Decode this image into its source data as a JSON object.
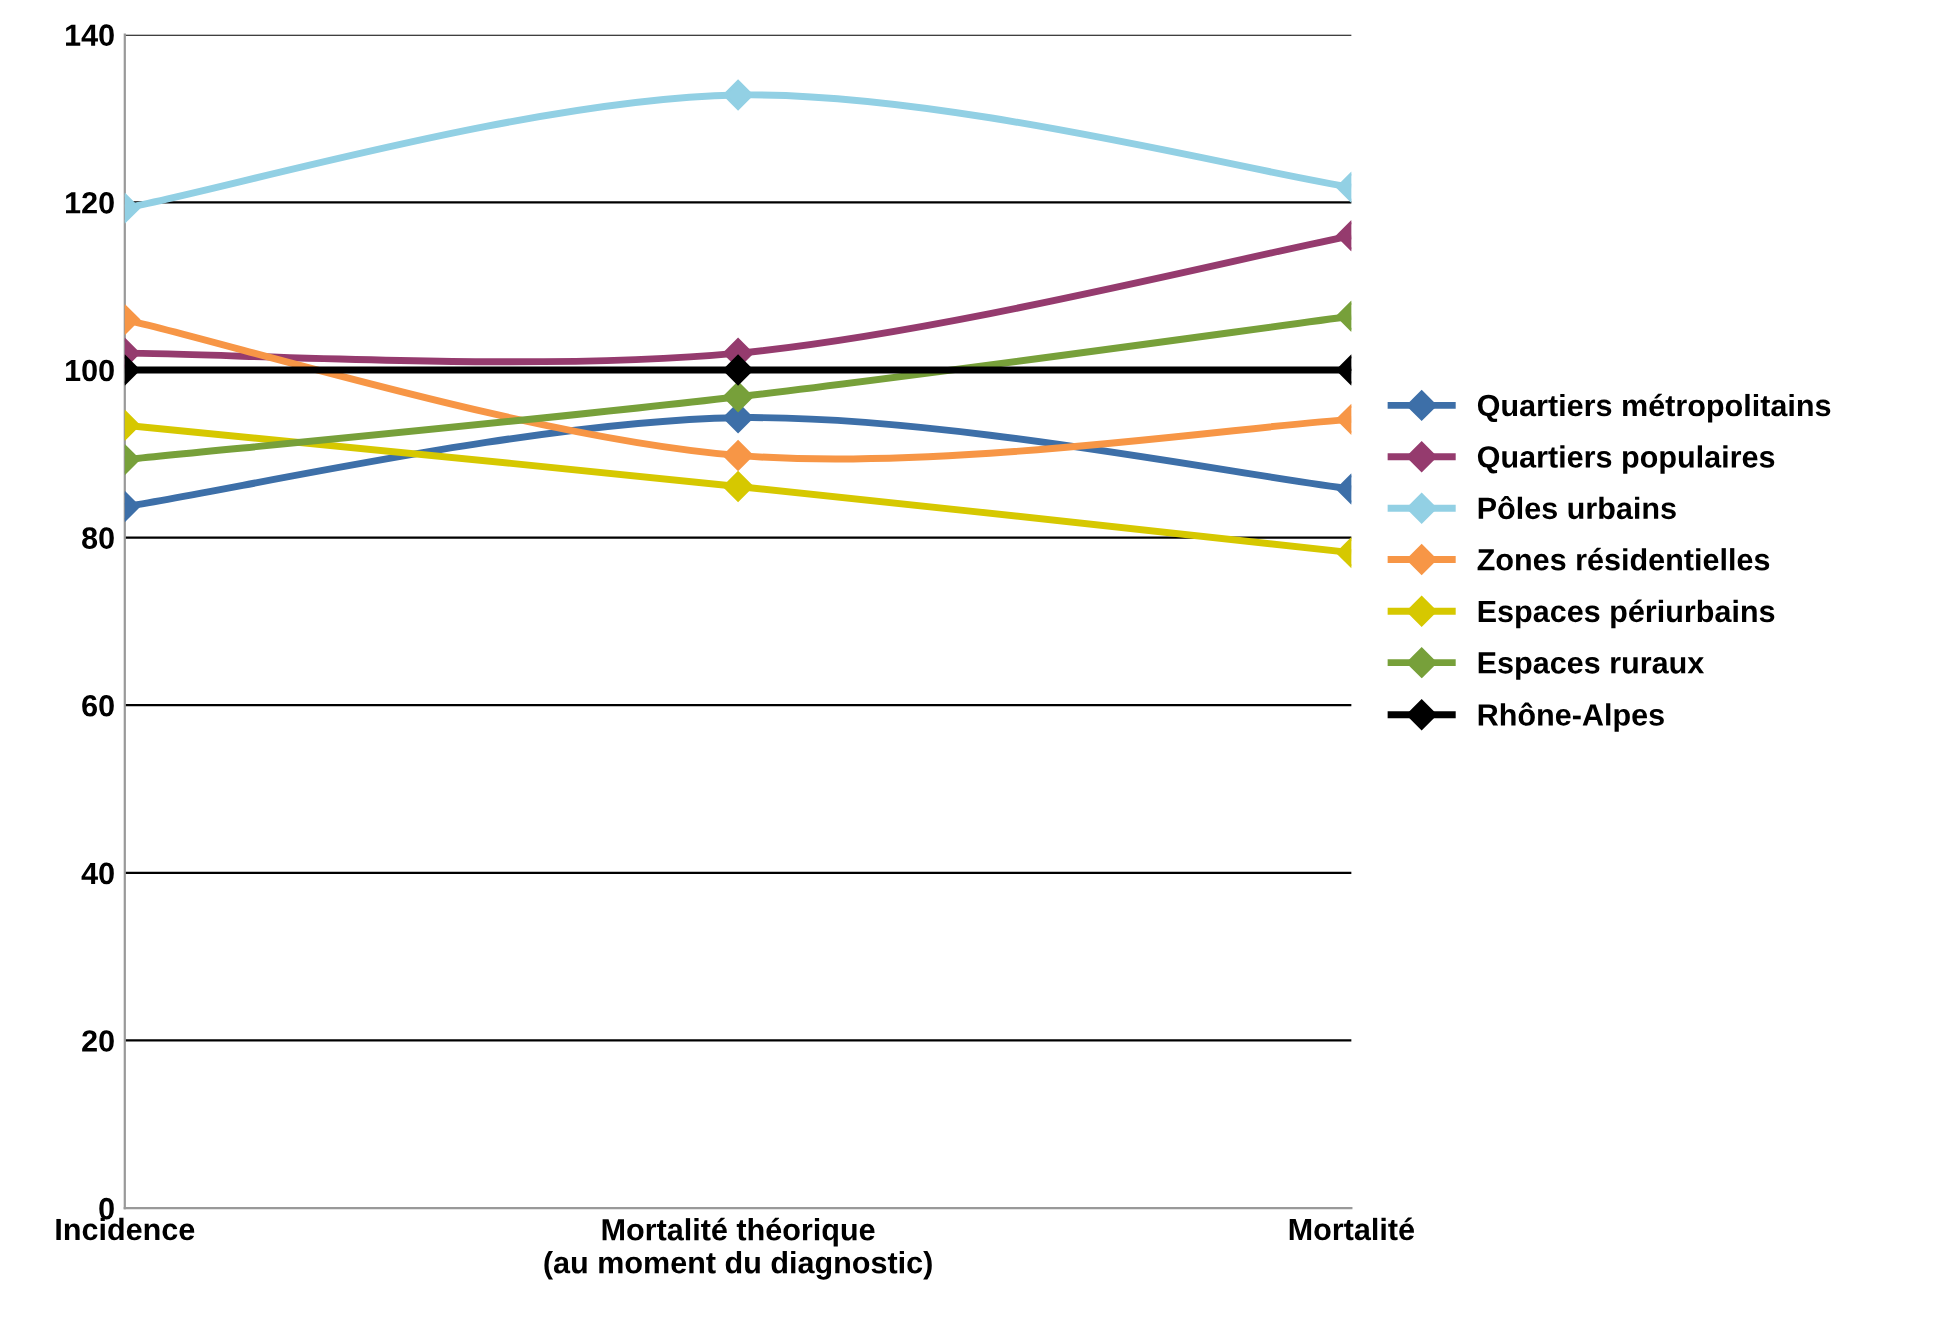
{
  "chart_data": {
    "type": "line",
    "categories": [
      "Incidence",
      "Mortalité théorique\n(au moment du diagnostic)",
      "Mortalité"
    ],
    "series": [
      {
        "name": "Quartiers métropolitains",
        "color": "#3d6fa8",
        "values": [
          83.7,
          94.3,
          85.8
        ]
      },
      {
        "name": "Quartiers populaires",
        "color": "#953b6e",
        "values": [
          102,
          102,
          116
        ]
      },
      {
        "name": "Pôles urbains",
        "color": "#92d0e4",
        "values": [
          119.3,
          132.8,
          121.8
        ]
      },
      {
        "name": "Zones résidentielles",
        "color": "#f79646",
        "values": [
          106,
          89.8,
          94.1
        ]
      },
      {
        "name": "Espaces périurbains",
        "color": "#d6c800",
        "values": [
          93.4,
          86.1,
          78.2
        ]
      },
      {
        "name": "Espaces ruraux",
        "color": "#77a03a",
        "values": [
          89.3,
          96.8,
          106.4
        ]
      },
      {
        "name": "Rhône-Alpes",
        "color": "#000000",
        "values": [
          100,
          100,
          100
        ]
      }
    ],
    "ylim": [
      0,
      140
    ],
    "yticks": [
      0,
      20,
      40,
      60,
      80,
      100,
      120,
      140
    ],
    "grid": "y",
    "legend": "right",
    "marker": "diamond",
    "line_style": "solid"
  }
}
